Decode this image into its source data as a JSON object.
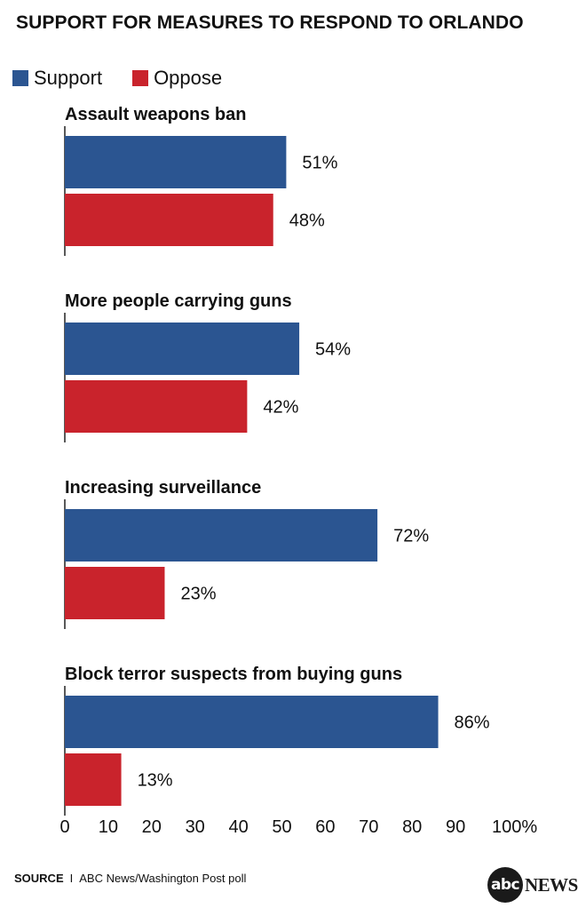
{
  "chart_data": {
    "type": "bar",
    "orientation": "horizontal",
    "title": "SUPPORT FOR MEASURES TO RESPOND TO ORLANDO",
    "categories": [
      "Assault weapons ban",
      "More people carrying guns",
      "Increasing surveillance",
      "Block terror suspects from buying guns"
    ],
    "series": [
      {
        "name": "Support",
        "color": "#2b5591",
        "values": [
          51,
          54,
          72,
          86
        ],
        "labels": [
          "51%",
          "54%",
          "72%",
          "86%"
        ]
      },
      {
        "name": "Oppose",
        "color": "#c9232c",
        "values": [
          48,
          42,
          23,
          13
        ],
        "labels": [
          "48%",
          "42%",
          "23%",
          "13%"
        ]
      }
    ],
    "xlim": [
      0,
      100
    ],
    "x_ticks": [
      0,
      10,
      20,
      30,
      40,
      50,
      60,
      70,
      80,
      90,
      100
    ],
    "x_tick_labels": [
      "0",
      "10",
      "20",
      "30",
      "40",
      "50",
      "60",
      "70",
      "80",
      "90",
      "100%"
    ],
    "legend_position": "top-left",
    "grid": false
  },
  "footer": {
    "source_label": "SOURCE",
    "source_separator": "I",
    "source_text": "ABC News/Washington Post poll"
  },
  "logo": {
    "mark_text": "abc",
    "wordmark_text": "NEWS"
  }
}
